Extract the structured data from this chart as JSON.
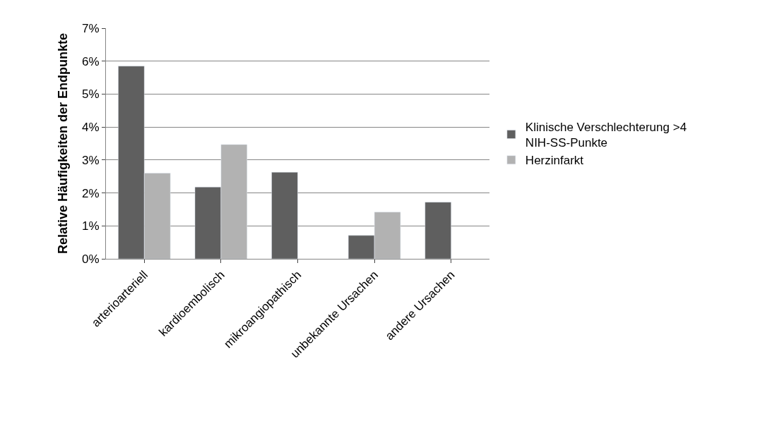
{
  "chart_data": {
    "type": "bar",
    "ylabel": "Relative Häufigkeiten der Endpunkte",
    "categories": [
      "arterioarteriell",
      "kardioembolisch",
      "mikroangiopathisch",
      "unbekannte Ursachen",
      "andere Ursachen"
    ],
    "series": [
      {
        "name": "Klinische Verschlechterung >4 NIH-SS-Punkte",
        "color": "#5f5f5f",
        "values": [
          5.85,
          2.18,
          2.63,
          0.71,
          1.72
        ]
      },
      {
        "name": "Herzinfarkt",
        "color": "#b2b2b2",
        "values": [
          2.6,
          3.47,
          null,
          1.42,
          null
        ]
      }
    ],
    "ylim": [
      0,
      7
    ],
    "yticks": [
      {
        "value": 0,
        "label": "0%"
      },
      {
        "value": 1,
        "label": "1%"
      },
      {
        "value": 2,
        "label": "2%"
      },
      {
        "value": 3,
        "label": "3%"
      },
      {
        "value": 4,
        "label": "4%"
      },
      {
        "value": 5,
        "label": "5%"
      },
      {
        "value": 6,
        "label": "6%"
      },
      {
        "value": 7,
        "label": "7%"
      }
    ],
    "grid": "y",
    "legend": "right"
  }
}
